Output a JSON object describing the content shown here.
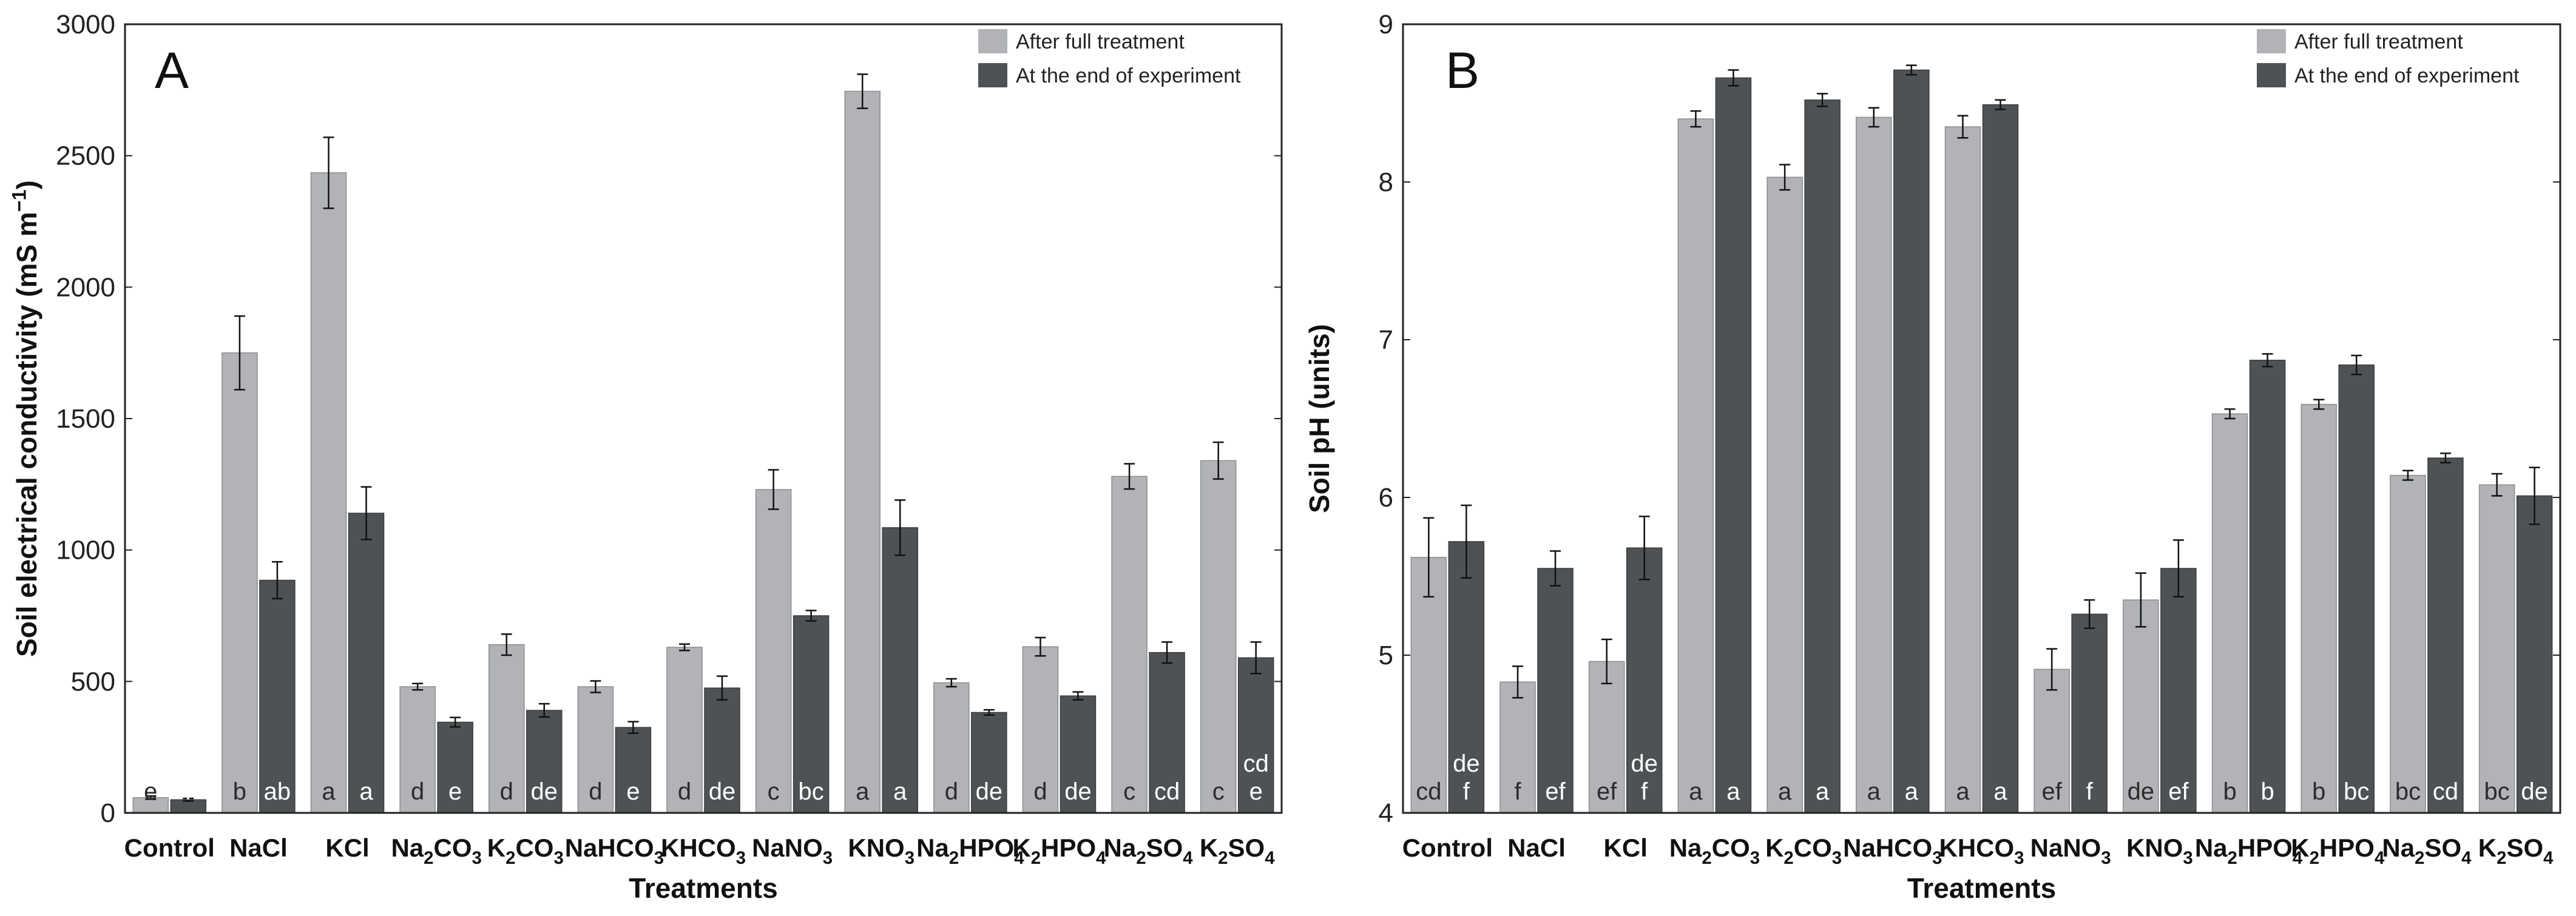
{
  "treatment_labels": [
    [
      "Control"
    ],
    [
      "NaCl"
    ],
    [
      "KCl"
    ],
    [
      "Na",
      {
        "sub": "2"
      },
      "CO",
      {
        "sub": "3"
      }
    ],
    [
      "K",
      {
        "sub": "2"
      },
      "CO",
      {
        "sub": "3"
      }
    ],
    [
      "NaHCO",
      {
        "sub": "3"
      }
    ],
    [
      "KHCO",
      {
        "sub": "3"
      }
    ],
    [
      "NaNO",
      {
        "sub": "3"
      }
    ],
    [
      "KNO",
      {
        "sub": "3"
      }
    ],
    [
      "Na",
      {
        "sub": "2"
      },
      "HPO",
      {
        "sub": "4"
      }
    ],
    [
      "K",
      {
        "sub": "2"
      },
      "HPO",
      {
        "sub": "4"
      }
    ],
    [
      "Na",
      {
        "sub": "2"
      },
      "SO",
      {
        "sub": "4"
      }
    ],
    [
      "K",
      {
        "sub": "2"
      },
      "SO",
      {
        "sub": "4"
      }
    ]
  ],
  "colors": {
    "after_full_treatment": "#b1b3b6",
    "end_of_experiment": "#4f5254"
  },
  "chart_data": [
    {
      "type": "bar",
      "panel_label": "A",
      "categories": [
        "Control",
        "NaCl",
        "KCl",
        "Na2CO3",
        "K2CO3",
        "NaHCO3",
        "KHCO3",
        "NaNO3",
        "KNO3",
        "Na2HPO4",
        "K2HPO4",
        "Na2SO4",
        "K2SO4"
      ],
      "xlabel": "Treatments",
      "ylabel": [
        "Soil electrical conductivity (mS m",
        {
          "sup": "−1"
        },
        ")"
      ],
      "ylim": [
        0,
        3000
      ],
      "yticks": [
        0,
        500,
        1000,
        1500,
        2000,
        2500,
        3000
      ],
      "legend": {
        "placement": "top-right"
      },
      "series": [
        {
          "name": "After full treatment",
          "values": [
            58,
            1750,
            2435,
            480,
            640,
            480,
            630,
            1230,
            2745,
            495,
            632,
            1280,
            1340
          ],
          "errors": [
            6,
            140,
            135,
            12,
            40,
            22,
            12,
            75,
            65,
            15,
            35,
            48,
            70
          ],
          "letters": [
            [
              "e"
            ],
            [
              "b"
            ],
            [
              "a"
            ],
            [
              "d"
            ],
            [
              "d"
            ],
            [
              "d"
            ],
            [
              "d"
            ],
            [
              "c"
            ],
            [
              "a"
            ],
            [
              "d"
            ],
            [
              "d"
            ],
            [
              "c"
            ],
            [
              "c"
            ]
          ]
        },
        {
          "name": "At the end of experiment",
          "values": [
            50,
            885,
            1140,
            345,
            390,
            325,
            475,
            750,
            1085,
            382,
            445,
            610,
            590
          ],
          "errors": [
            5,
            70,
            100,
            18,
            25,
            22,
            45,
            20,
            105,
            10,
            15,
            40,
            60
          ],
          "letters": [
            [
              "f"
            ],
            [
              "ab"
            ],
            [
              "a"
            ],
            [
              "e"
            ],
            [
              "de"
            ],
            [
              "e"
            ],
            [
              "de"
            ],
            [
              "bc"
            ],
            [
              "a"
            ],
            [
              "de"
            ],
            [
              "de"
            ],
            [
              "cd"
            ],
            [
              "cd",
              "e"
            ]
          ]
        }
      ]
    },
    {
      "type": "bar",
      "panel_label": "B",
      "categories": [
        "Control",
        "NaCl",
        "KCl",
        "Na2CO3",
        "K2CO3",
        "NaHCO3",
        "KHCO3",
        "NaNO3",
        "KNO3",
        "Na2HPO4",
        "K2HPO4",
        "Na2SO4",
        "K2SO4"
      ],
      "xlabel": "Treatments",
      "ylabel": [
        "Soil pH (units)"
      ],
      "ylim": [
        4,
        9
      ],
      "yticks": [
        4,
        5,
        6,
        7,
        8,
        9
      ],
      "legend": {
        "placement": "top-right"
      },
      "series": [
        {
          "name": "After full treatment",
          "values": [
            5.62,
            4.83,
            4.96,
            8.4,
            8.03,
            8.41,
            8.35,
            4.91,
            5.35,
            6.53,
            6.59,
            6.14,
            6.08
          ],
          "errors": [
            0.25,
            0.1,
            0.14,
            0.05,
            0.08,
            0.06,
            0.07,
            0.13,
            0.17,
            0.03,
            0.03,
            0.03,
            0.07
          ],
          "letters": [
            [
              "cd"
            ],
            [
              "f"
            ],
            [
              "ef"
            ],
            [
              "a"
            ],
            [
              "a"
            ],
            [
              "a"
            ],
            [
              "a"
            ],
            [
              "ef"
            ],
            [
              "de"
            ],
            [
              "b"
            ],
            [
              "b"
            ],
            [
              "bc"
            ],
            [
              "bc"
            ]
          ]
        },
        {
          "name": "At the end of experiment",
          "values": [
            5.72,
            5.55,
            5.68,
            8.66,
            8.52,
            8.71,
            8.49,
            5.26,
            5.55,
            6.87,
            6.84,
            6.25,
            6.01
          ],
          "errors": [
            0.23,
            0.11,
            0.2,
            0.05,
            0.04,
            0.03,
            0.03,
            0.09,
            0.18,
            0.04,
            0.06,
            0.03,
            0.18
          ],
          "letters": [
            [
              "de",
              "f"
            ],
            [
              "ef"
            ],
            [
              "de",
              "f"
            ],
            [
              "a"
            ],
            [
              "a"
            ],
            [
              "a"
            ],
            [
              "a"
            ],
            [
              "f"
            ],
            [
              "ef"
            ],
            [
              "b"
            ],
            [
              "bc"
            ],
            [
              "cd"
            ],
            [
              "de"
            ]
          ]
        }
      ]
    }
  ]
}
